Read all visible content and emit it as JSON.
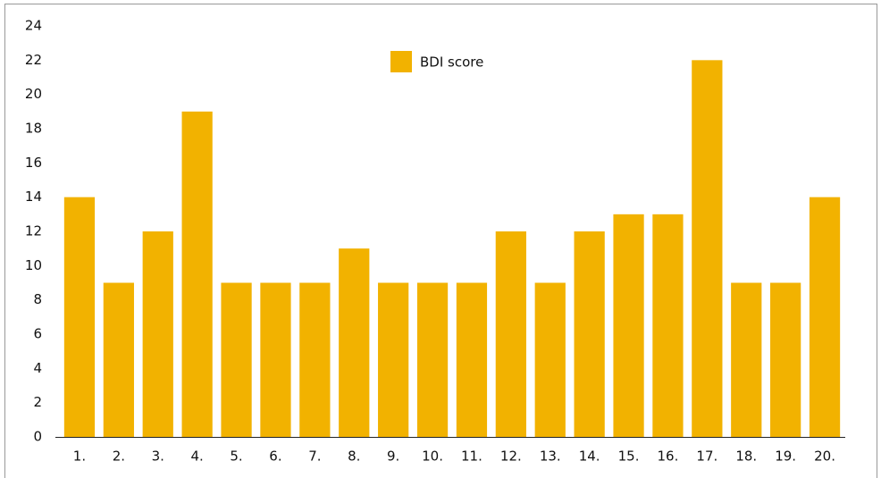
{
  "chart_data": {
    "type": "bar",
    "categories": [
      "1.",
      "2.",
      "3.",
      "4.",
      "5.",
      "6.",
      "7.",
      "8.",
      "9.",
      "10.",
      "11.",
      "12.",
      "13.",
      "14.",
      "15.",
      "16.",
      "17.",
      "18.",
      "19.",
      "20."
    ],
    "series": [
      {
        "name": "BDI score",
        "color": "#f2b200",
        "values": [
          14,
          9,
          12,
          19,
          9,
          9,
          9,
          11,
          9,
          9,
          9,
          12,
          9,
          12,
          13,
          13,
          22,
          9,
          9,
          14
        ]
      }
    ],
    "ylim": [
      0,
      24
    ],
    "yticks": [
      0,
      2,
      4,
      6,
      8,
      10,
      12,
      14,
      16,
      18,
      20,
      22,
      24
    ],
    "grid": false,
    "legend": "top"
  }
}
